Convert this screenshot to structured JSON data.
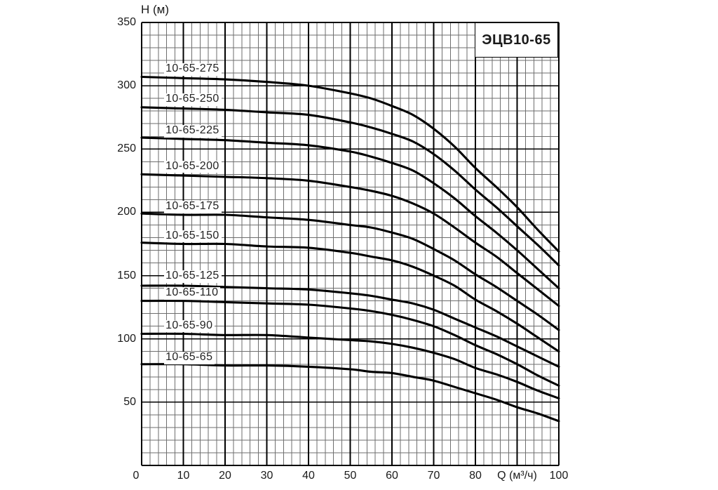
{
  "page": {
    "background": "#ffffff"
  },
  "chart_data": {
    "type": "line",
    "title": "ЭЦВ10-65",
    "xlabel": "Q (м³/ч)",
    "ylabel": "H (м)",
    "xlim": [
      0,
      100
    ],
    "ylim": [
      0,
      350
    ],
    "x_minor_step": 2,
    "x_major_step": 10,
    "y_minor_step": 10,
    "y_major_step": 50,
    "x_ticks": [
      0,
      10,
      20,
      30,
      40,
      50,
      60,
      70,
      80,
      100
    ],
    "xlabel_at": 90,
    "y_ticks": [
      350,
      300,
      250,
      200,
      150,
      100,
      50
    ],
    "grid": "both",
    "legend_position": "inline-labels",
    "colors": {
      "curve": "#000000",
      "grid_minor": "#6e6e6e",
      "grid_major": "#000000",
      "text": "#1a1a1a",
      "background": "#ffffff"
    },
    "x": [
      0,
      10,
      20,
      30,
      40,
      50,
      55,
      60,
      65,
      70,
      75,
      80,
      85,
      90,
      95,
      100
    ],
    "series": [
      {
        "name": "10-65-275",
        "label_q": 5.4,
        "label_h": 313,
        "values": [
          307,
          306,
          305,
          303,
          300,
          294,
          290,
          284,
          277,
          266,
          252,
          235,
          220,
          204,
          186,
          169
        ]
      },
      {
        "name": "10-65-250",
        "label_q": 5.4,
        "label_h": 289,
        "values": [
          283,
          282,
          281,
          279,
          277,
          271,
          267,
          262,
          256,
          246,
          233,
          218,
          204,
          189,
          174,
          158
        ]
      },
      {
        "name": "10-65-225",
        "label_q": 5.4,
        "label_h": 264,
        "values": [
          259,
          258,
          257,
          255,
          253,
          248,
          244,
          239,
          233,
          223,
          211,
          197,
          184,
          170,
          155,
          140
        ]
      },
      {
        "name": "10-65-200",
        "label_q": 5.4,
        "label_h": 236,
        "values": [
          230,
          229,
          228,
          227,
          225,
          220,
          217,
          213,
          207,
          199,
          188,
          176,
          165,
          152,
          139,
          126
        ]
      },
      {
        "name": "10-65-175",
        "label_q": 5.4,
        "label_h": 204,
        "values": [
          199,
          198,
          198,
          196,
          194,
          190,
          188,
          184,
          179,
          171,
          162,
          151,
          141,
          130,
          119,
          107
        ]
      },
      {
        "name": "10-65-150",
        "label_q": 5.4,
        "label_h": 181,
        "values": [
          176,
          175,
          175,
          173,
          172,
          168,
          165,
          162,
          157,
          150,
          142,
          131,
          122,
          112,
          101,
          90
        ]
      },
      {
        "name": "10-65-125",
        "label_q": 5.4,
        "label_h": 149,
        "values": [
          142,
          142,
          141,
          140,
          139,
          136,
          134,
          131,
          128,
          123,
          116,
          109,
          102,
          94,
          86,
          78
        ]
      },
      {
        "name": "10-65-110",
        "label_q": 5.4,
        "label_h": 136,
        "values": [
          130,
          130,
          129,
          128,
          127,
          124,
          122,
          119,
          115,
          110,
          103,
          95,
          88,
          80,
          71,
          63
        ]
      },
      {
        "name": "10-65-90",
        "label_q": 5.4,
        "label_h": 110,
        "values": [
          104,
          104,
          103,
          103,
          101,
          99,
          98,
          96,
          93,
          89,
          84,
          77,
          72,
          66,
          59,
          53
        ]
      },
      {
        "name": "10-65-65",
        "label_q": 5.4,
        "label_h": 85,
        "values": [
          80,
          80,
          79,
          79,
          78,
          76,
          74,
          73,
          70,
          67,
          62,
          57,
          52,
          46,
          41,
          35
        ]
      }
    ]
  }
}
